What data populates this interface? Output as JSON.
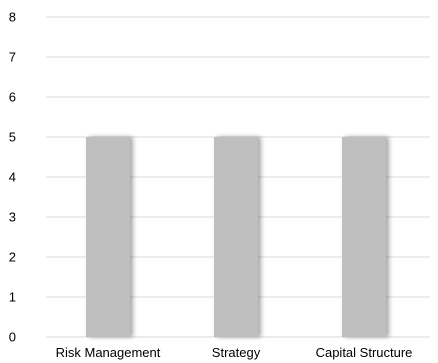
{
  "chart_data": {
    "type": "bar",
    "categories": [
      "Risk Management",
      "Strategy",
      "Capital Structure"
    ],
    "values": [
      5,
      5,
      5
    ],
    "ylim": [
      0,
      8
    ],
    "yticks": [
      0,
      1,
      2,
      3,
      4,
      5,
      6,
      7,
      8
    ],
    "grid": true,
    "legend": "none",
    "bar_color": "#bfbfbf",
    "gridline_color": "#d9d9d9"
  }
}
